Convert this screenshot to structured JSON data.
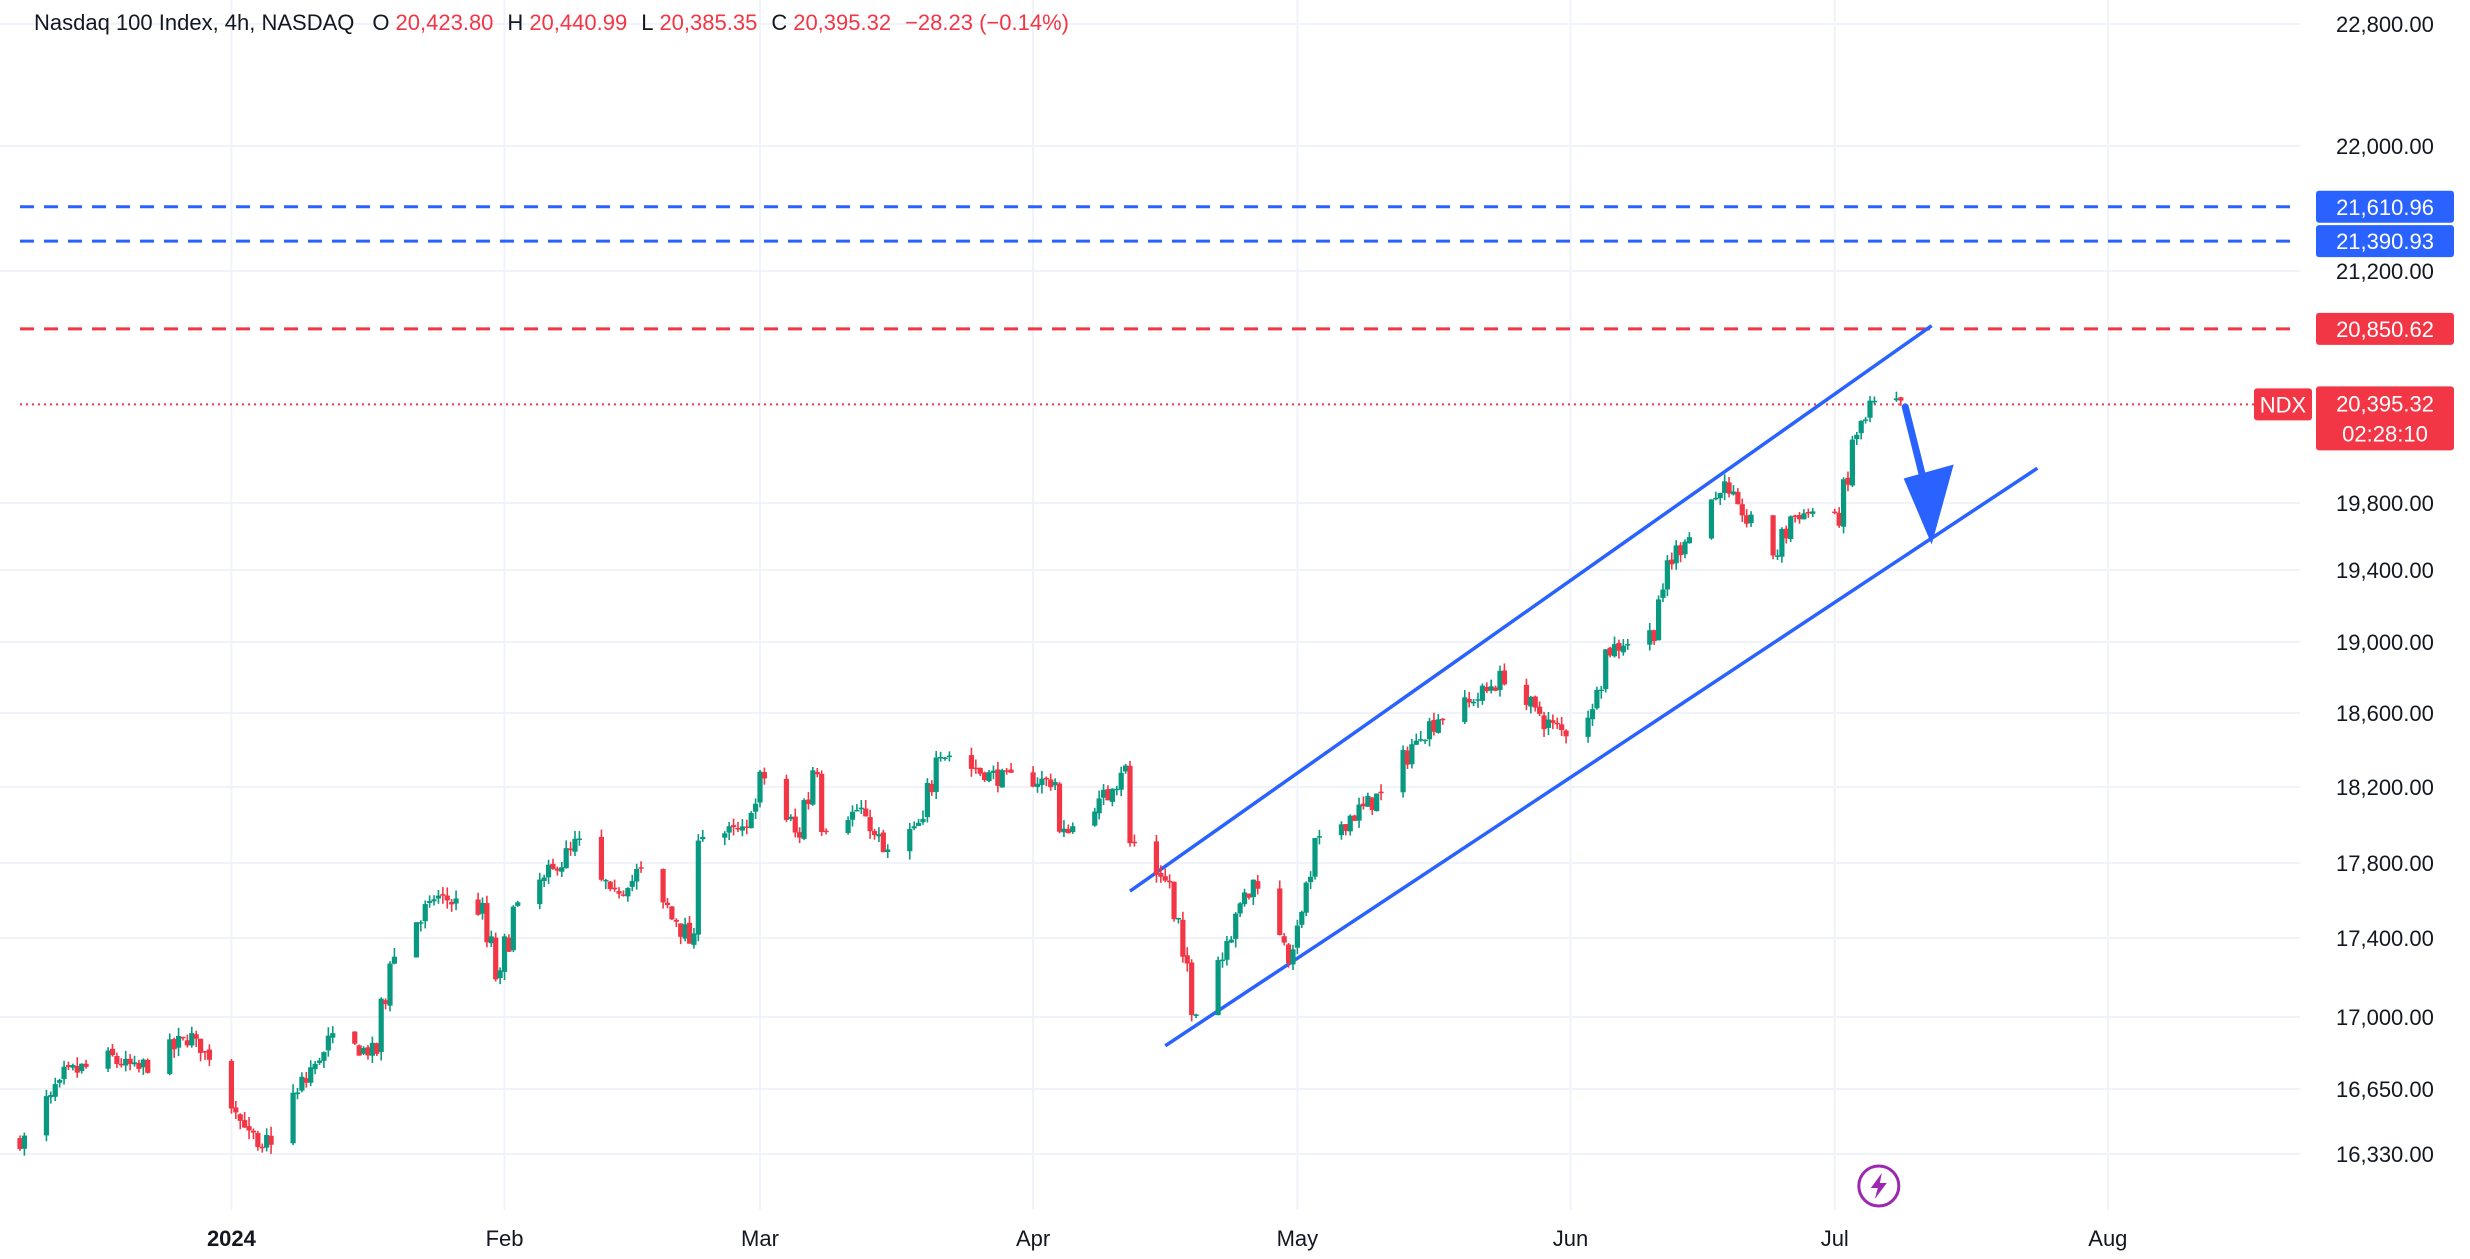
{
  "header": {
    "symbol_title": "Nasdaq 100 Index, 4h, NASDAQ",
    "open_label": "O",
    "open_value": "20,423.80",
    "high_label": "H",
    "high_value": "20,440.99",
    "low_label": "L",
    "low_value": "20,385.35",
    "close_label": "C",
    "close_value": "20,395.32",
    "change": "−28.23 (−0.14%)"
  },
  "colors": {
    "up": "#089981",
    "down": "#f23645",
    "blue": "#2962ff",
    "grid": "#f0f3fa",
    "text": "#131722",
    "axis_text": "#131722"
  },
  "chart_data": {
    "type": "candlestick",
    "timeframe": "4h",
    "x_range": [
      "2023-12-08",
      "2024-08-16"
    ],
    "ylim": [
      16180,
      23000
    ],
    "y_ticks": [
      {
        "value": 16330,
        "label": "16,330.00"
      },
      {
        "value": 16650,
        "label": "16,650.00"
      },
      {
        "value": 17000,
        "label": "17,000.00"
      },
      {
        "value": 17400,
        "label": "17,400.00"
      },
      {
        "value": 17800,
        "label": "17,800.00"
      },
      {
        "value": 18200,
        "label": "18,200.00"
      },
      {
        "value": 18600,
        "label": "18,600.00"
      },
      {
        "value": 19000,
        "label": "19,000.00"
      },
      {
        "value": 19400,
        "label": "19,400.00"
      },
      {
        "value": 19800,
        "label": "19,800.00"
      },
      {
        "value": 21200,
        "label": "21,200.00"
      },
      {
        "value": 22000,
        "label": "22,000.00"
      },
      {
        "value": 22800,
        "label": "22,800.00"
      }
    ],
    "x_ticks": [
      {
        "date": "2024-01-01",
        "label": "2024",
        "bold": true
      },
      {
        "date": "2024-02-01",
        "label": "Feb",
        "bold": false
      },
      {
        "date": "2024-03-01",
        "label": "Mar",
        "bold": false
      },
      {
        "date": "2024-04-01",
        "label": "Apr",
        "bold": false
      },
      {
        "date": "2024-05-01",
        "label": "May",
        "bold": false
      },
      {
        "date": "2024-06-01",
        "label": "Jun",
        "bold": false
      },
      {
        "date": "2024-07-01",
        "label": "Jul",
        "bold": false
      },
      {
        "date": "2024-08-01",
        "label": "Aug",
        "bold": false
      }
    ],
    "ohlc_anchors": [
      {
        "date": "2023-12-08",
        "close": 16400
      },
      {
        "date": "2023-12-13",
        "close": 16720
      },
      {
        "date": "2023-12-18",
        "close": 16800
      },
      {
        "date": "2023-12-21",
        "close": 16740
      },
      {
        "date": "2023-12-27",
        "close": 16900
      },
      {
        "date": "2023-12-29",
        "close": 16820
      },
      {
        "date": "2024-01-04",
        "close": 16330
      },
      {
        "date": "2024-01-08",
        "close": 16620
      },
      {
        "date": "2024-01-12",
        "close": 16880
      },
      {
        "date": "2024-01-17",
        "close": 16830
      },
      {
        "date": "2024-01-19",
        "close": 17300
      },
      {
        "date": "2024-01-24",
        "close": 17620
      },
      {
        "date": "2024-01-29",
        "close": 17550
      },
      {
        "date": "2024-01-31",
        "close": 17200
      },
      {
        "date": "2024-02-02",
        "close": 17550
      },
      {
        "date": "2024-02-09",
        "close": 17900
      },
      {
        "date": "2024-02-13",
        "close": 17620
      },
      {
        "date": "2024-02-16",
        "close": 17750
      },
      {
        "date": "2024-02-20",
        "close": 17500
      },
      {
        "date": "2024-02-22",
        "close": 17380
      },
      {
        "date": "2024-02-23",
        "close": 17960
      },
      {
        "date": "2024-02-28",
        "close": 17960
      },
      {
        "date": "2024-03-01",
        "close": 18250
      },
      {
        "date": "2024-03-05",
        "close": 17950
      },
      {
        "date": "2024-03-07",
        "close": 18300
      },
      {
        "date": "2024-03-08",
        "close": 18000
      },
      {
        "date": "2024-03-12",
        "close": 18080
      },
      {
        "date": "2024-03-15",
        "close": 17850
      },
      {
        "date": "2024-03-19",
        "close": 18000
      },
      {
        "date": "2024-03-21",
        "close": 18400
      },
      {
        "date": "2024-03-26",
        "close": 18280
      },
      {
        "date": "2024-03-28",
        "close": 18250
      },
      {
        "date": "2024-04-03",
        "close": 18230
      },
      {
        "date": "2024-04-04",
        "close": 17950
      },
      {
        "date": "2024-04-09",
        "close": 18150
      },
      {
        "date": "2024-04-11",
        "close": 18300
      },
      {
        "date": "2024-04-12",
        "close": 17900
      },
      {
        "date": "2024-04-16",
        "close": 17700
      },
      {
        "date": "2024-04-19",
        "close": 17050
      },
      {
        "date": "2024-04-22",
        "close": 17300
      },
      {
        "date": "2024-04-24",
        "close": 17550
      },
      {
        "date": "2024-04-26",
        "close": 17700
      },
      {
        "date": "2024-04-30",
        "close": 17300
      },
      {
        "date": "2024-05-03",
        "close": 17900
      },
      {
        "date": "2024-05-07",
        "close": 18050
      },
      {
        "date": "2024-05-10",
        "close": 18150
      },
      {
        "date": "2024-05-15",
        "close": 18500
      },
      {
        "date": "2024-05-17",
        "close": 18580
      },
      {
        "date": "2024-05-20",
        "close": 18650
      },
      {
        "date": "2024-05-22",
        "close": 18720
      },
      {
        "date": "2024-05-24",
        "close": 18800
      },
      {
        "date": "2024-05-29",
        "close": 18550
      },
      {
        "date": "2024-05-31",
        "close": 18500
      },
      {
        "date": "2024-06-03",
        "close": 18600
      },
      {
        "date": "2024-06-05",
        "close": 18950
      },
      {
        "date": "2024-06-07",
        "close": 19000
      },
      {
        "date": "2024-06-10",
        "close": 19050
      },
      {
        "date": "2024-06-12",
        "close": 19450
      },
      {
        "date": "2024-06-14",
        "close": 19600
      },
      {
        "date": "2024-06-18",
        "close": 19900
      },
      {
        "date": "2024-06-20",
        "close": 19750
      },
      {
        "date": "2024-06-24",
        "close": 19500
      },
      {
        "date": "2024-06-26",
        "close": 19720
      },
      {
        "date": "2024-06-28",
        "close": 19750
      },
      {
        "date": "2024-07-01",
        "close": 19700
      },
      {
        "date": "2024-07-02",
        "close": 19900
      },
      {
        "date": "2024-07-03",
        "close": 20190
      },
      {
        "date": "2024-07-05",
        "close": 20390
      },
      {
        "date": "2024-07-08",
        "close": 20395
      }
    ],
    "horizontal_levels": [
      {
        "value": 21610.96,
        "label": "21,610.96",
        "color": "#2962ff",
        "style": "dashed"
      },
      {
        "value": 21390.93,
        "label": "21,390.93",
        "color": "#2962ff",
        "style": "dashed"
      },
      {
        "value": 20850.62,
        "label": "20,850.62",
        "color": "#f23645",
        "style": "dashed"
      }
    ],
    "last_price": {
      "symbol": "NDX",
      "value": 20395.32,
      "label": "20,395.32",
      "countdown": "02:28:10",
      "color": "#f23645"
    },
    "channel": {
      "upper": [
        {
          "date": "2024-04-12",
          "price": 17650
        },
        {
          "date": "2024-07-12",
          "price": 20870
        }
      ],
      "lower": [
        {
          "date": "2024-04-16",
          "price": 16860
        },
        {
          "date": "2024-07-24",
          "price": 20010
        }
      ]
    },
    "arrow": {
      "from": {
        "date": "2024-07-09",
        "price": 20380
      },
      "to": {
        "date": "2024-07-12",
        "price": 19600
      },
      "color": "#2962ff"
    },
    "event_marker": {
      "date": "2024-07-06",
      "icon": "lightning-icon",
      "color": "#9c27b0"
    }
  }
}
